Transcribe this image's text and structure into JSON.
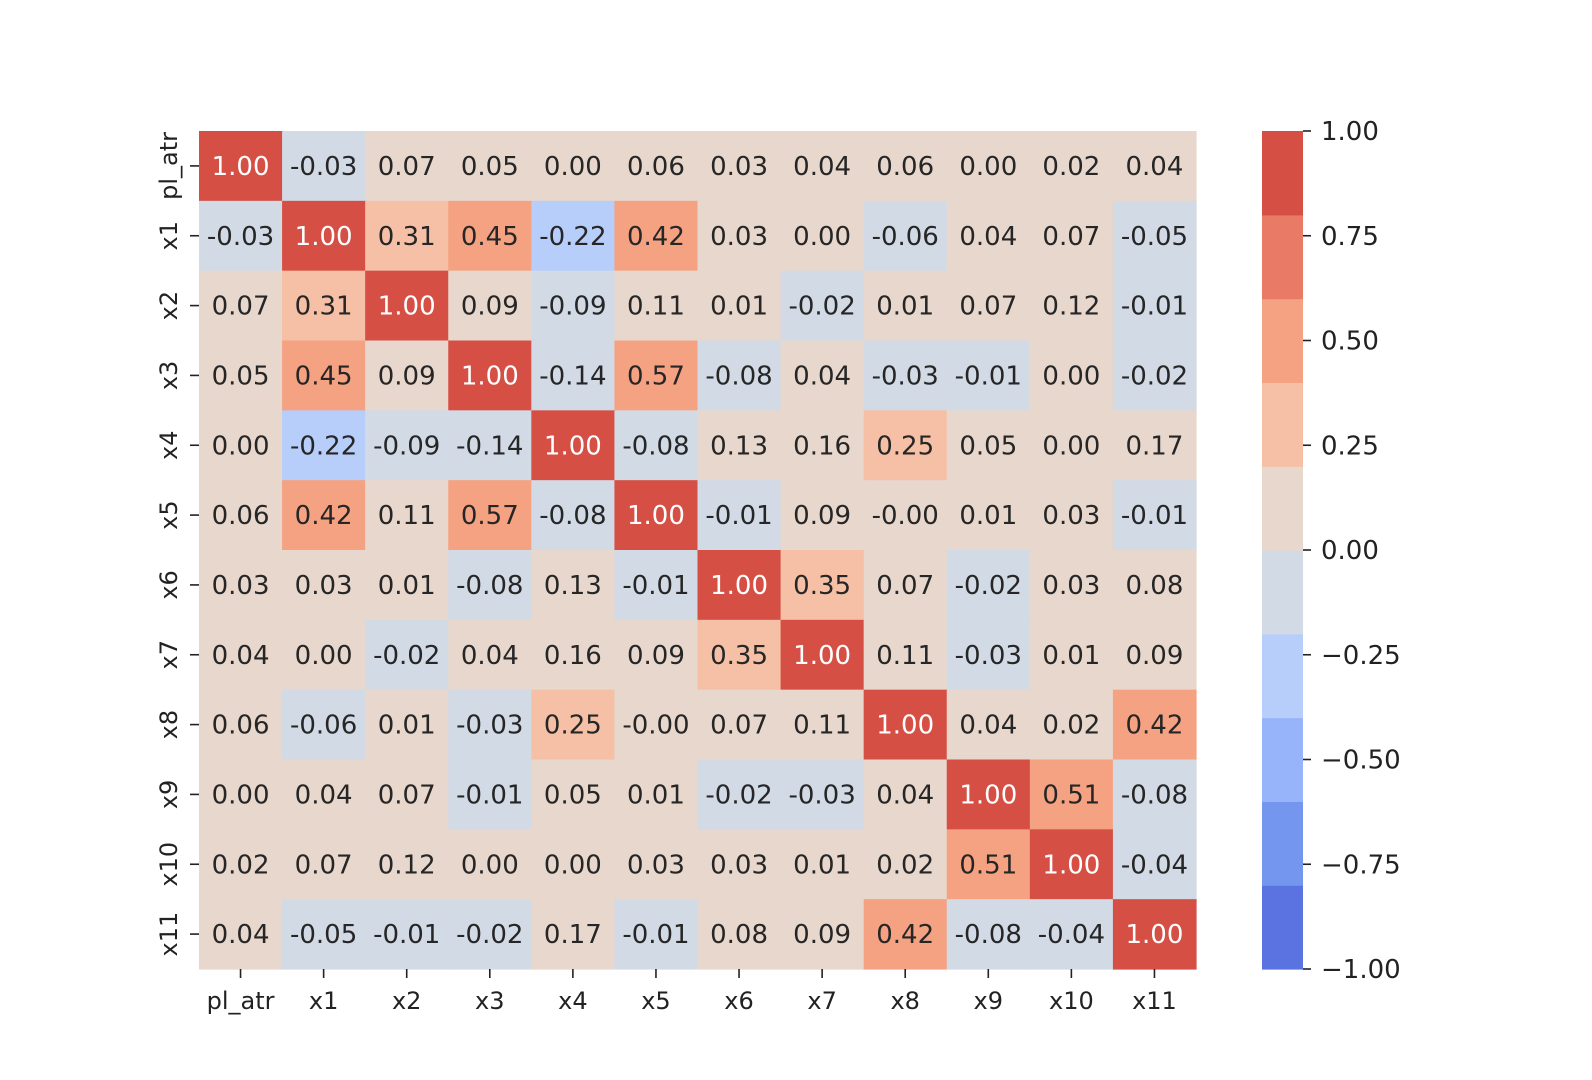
{
  "chart_data": {
    "type": "heatmap",
    "title": "",
    "xlabel": "",
    "ylabel": "",
    "row_labels": [
      "pl_atr",
      "x1",
      "x2",
      "x3",
      "x4",
      "x5",
      "x6",
      "x7",
      "x8",
      "x9",
      "x10",
      "x11"
    ],
    "col_labels": [
      "pl_atr",
      "x1",
      "x2",
      "x3",
      "x4",
      "x5",
      "x6",
      "x7",
      "x8",
      "x9",
      "x10",
      "x11"
    ],
    "values": [
      [
        "1.00",
        "-0.03",
        "0.07",
        "0.05",
        "0.00",
        "0.06",
        "0.03",
        "0.04",
        "0.06",
        "0.00",
        "0.02",
        "0.04"
      ],
      [
        "-0.03",
        "1.00",
        "0.31",
        "0.45",
        "-0.22",
        "0.42",
        "0.03",
        "0.00",
        "-0.06",
        "0.04",
        "0.07",
        "-0.05"
      ],
      [
        "0.07",
        "0.31",
        "1.00",
        "0.09",
        "-0.09",
        "0.11",
        "0.01",
        "-0.02",
        "0.01",
        "0.07",
        "0.12",
        "-0.01"
      ],
      [
        "0.05",
        "0.45",
        "0.09",
        "1.00",
        "-0.14",
        "0.57",
        "-0.08",
        "0.04",
        "-0.03",
        "-0.01",
        "0.00",
        "-0.02"
      ],
      [
        "0.00",
        "-0.22",
        "-0.09",
        "-0.14",
        "1.00",
        "-0.08",
        "0.13",
        "0.16",
        "0.25",
        "0.05",
        "0.00",
        "0.17"
      ],
      [
        "0.06",
        "0.42",
        "0.11",
        "0.57",
        "-0.08",
        "1.00",
        "-0.01",
        "0.09",
        "-0.00",
        "0.01",
        "0.03",
        "-0.01"
      ],
      [
        "0.03",
        "0.03",
        "0.01",
        "-0.08",
        "0.13",
        "-0.01",
        "1.00",
        "0.35",
        "0.07",
        "-0.02",
        "0.03",
        "0.08"
      ],
      [
        "0.04",
        "0.00",
        "-0.02",
        "0.04",
        "0.16",
        "0.09",
        "0.35",
        "1.00",
        "0.11",
        "-0.03",
        "0.01",
        "0.09"
      ],
      [
        "0.06",
        "-0.06",
        "0.01",
        "-0.03",
        "0.25",
        "-0.00",
        "0.07",
        "0.11",
        "1.00",
        "0.04",
        "0.02",
        "0.42"
      ],
      [
        "0.00",
        "0.04",
        "0.07",
        "-0.01",
        "0.05",
        "0.01",
        "-0.02",
        "-0.03",
        "0.04",
        "1.00",
        "0.51",
        "-0.08"
      ],
      [
        "0.02",
        "0.07",
        "0.12",
        "0.00",
        "0.00",
        "0.03",
        "0.03",
        "0.01",
        "0.02",
        "0.51",
        "1.00",
        "-0.04"
      ],
      [
        "0.04",
        "-0.05",
        "-0.01",
        "-0.02",
        "0.17",
        "-0.01",
        "0.08",
        "0.09",
        "0.42",
        "-0.08",
        "-0.04",
        "1.00"
      ]
    ],
    "colorbar": {
      "vmin": -1.0,
      "vmax": 1.0,
      "ticks": [
        "1.00",
        "0.75",
        "0.50",
        "0.25",
        "0.00",
        "−0.25",
        "−0.50",
        "−0.75",
        "−1.00"
      ],
      "bins": [
        {
          "from": -1.0,
          "to": -0.8,
          "color": "#5b73e0"
        },
        {
          "from": -0.8,
          "to": -0.6,
          "color": "#7596ef"
        },
        {
          "from": -0.6,
          "to": -0.4,
          "color": "#97b4fa"
        },
        {
          "from": -0.4,
          "to": -0.2,
          "color": "#b7cdfa"
        },
        {
          "from": -0.2,
          "to": 0.0,
          "color": "#d2dae6"
        },
        {
          "from": 0.0,
          "to": 0.2,
          "color": "#e8d7cc"
        },
        {
          "from": 0.2,
          "to": 0.4,
          "color": "#f5c0a5"
        },
        {
          "from": 0.4,
          "to": 0.6,
          "color": "#f5a282"
        },
        {
          "from": 0.6,
          "to": 0.8,
          "color": "#e97a66"
        },
        {
          "from": 0.8,
          "to": 1.0,
          "color": "#d64f44"
        }
      ]
    },
    "grid": false,
    "legend": "right (colorbar)"
  }
}
